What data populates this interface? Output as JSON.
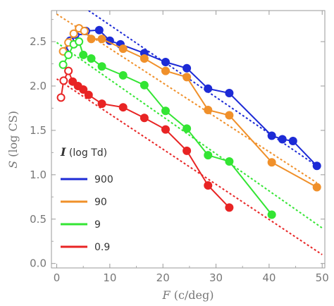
{
  "chart_data": {
    "type": "scatter",
    "title": "",
    "xlabel_symbol": "F",
    "xlabel_unit": " (c/deg)",
    "ylabel_symbol": "S",
    "ylabel_unit": " (log CS)",
    "xlim": [
      -1,
      50.5
    ],
    "ylim": [
      -0.05,
      2.85
    ],
    "xticks": [
      0,
      10,
      20,
      30,
      40,
      50
    ],
    "yticks": [
      0.0,
      0.5,
      1.0,
      1.5,
      2.0,
      2.5
    ],
    "ytick_labels": [
      "0.0",
      "0.5",
      "1.0",
      "1.5",
      "2.0",
      "2.5"
    ],
    "grid": false,
    "legend": {
      "placement": "bottom-left",
      "title_symbol": "I",
      "title_unit": " (log Td)"
    },
    "series": [
      {
        "name": "900",
        "color": "#1d2bd6",
        "open_points": [
          [
            1.5,
            2.39
          ],
          [
            2.5,
            2.51
          ],
          [
            3.5,
            2.58
          ],
          [
            4.5,
            2.62
          ],
          [
            5.5,
            2.62
          ]
        ],
        "filled_points": [
          [
            8,
            2.63
          ],
          [
            10,
            2.51
          ],
          [
            12,
            2.47
          ],
          [
            16.5,
            2.37
          ],
          [
            20.5,
            2.27
          ],
          [
            24.5,
            2.2
          ],
          [
            28.5,
            1.97
          ],
          [
            32.5,
            1.92
          ],
          [
            40.5,
            1.44
          ],
          [
            42.5,
            1.4
          ],
          [
            44.5,
            1.38
          ],
          [
            49,
            1.1
          ]
        ],
        "fit_line": [
          [
            6,
            2.85
          ],
          [
            49,
            1.1
          ]
        ]
      },
      {
        "name": "90",
        "color": "#f0902a",
        "open_points": [
          [
            1.2,
            2.39
          ],
          [
            2.2,
            2.49
          ],
          [
            3.2,
            2.59
          ],
          [
            4.2,
            2.65
          ],
          [
            5.2,
            2.62
          ]
        ],
        "filled_points": [
          [
            6.5,
            2.53
          ],
          [
            8.5,
            2.53
          ],
          [
            12.5,
            2.42
          ],
          [
            16.5,
            2.31
          ],
          [
            20.5,
            2.17
          ],
          [
            24.5,
            2.1
          ],
          [
            28.5,
            1.73
          ],
          [
            32.5,
            1.67
          ],
          [
            40.5,
            1.14
          ],
          [
            49,
            0.86
          ]
        ],
        "fit_line": [
          [
            0,
            2.81
          ],
          [
            49,
            0.91
          ]
        ]
      },
      {
        "name": "9",
        "color": "#33e533",
        "open_points": [
          [
            1.2,
            2.24
          ],
          [
            2.2,
            2.35
          ],
          [
            3.2,
            2.47
          ],
          [
            4.2,
            2.5
          ]
        ],
        "filled_points": [
          [
            5,
            2.35
          ],
          [
            6.5,
            2.31
          ],
          [
            8.5,
            2.22
          ],
          [
            12.5,
            2.12
          ],
          [
            16.5,
            2.01
          ],
          [
            20.5,
            1.72
          ],
          [
            24.5,
            1.52
          ],
          [
            28.5,
            1.22
          ],
          [
            32.5,
            1.15
          ],
          [
            40.5,
            0.55
          ]
        ],
        "fit_line": [
          [
            0,
            2.49
          ],
          [
            50,
            0.4
          ]
        ]
      },
      {
        "name": "0.9",
        "color": "#e82424",
        "open_points": [
          [
            0.8,
            1.87
          ],
          [
            1.3,
            2.06
          ],
          [
            2.2,
            2.17
          ]
        ],
        "filled_points": [
          [
            3,
            2.05
          ],
          [
            4,
            2.0
          ],
          [
            5,
            1.96
          ],
          [
            6,
            1.9
          ],
          [
            8.5,
            1.8
          ],
          [
            12.5,
            1.76
          ],
          [
            16.5,
            1.64
          ],
          [
            20.5,
            1.51
          ],
          [
            24.5,
            1.27
          ],
          [
            28.5,
            0.88
          ],
          [
            32.5,
            0.63
          ]
        ],
        "fit_line": [
          [
            0,
            2.08
          ],
          [
            50,
            0.1
          ]
        ]
      }
    ]
  }
}
